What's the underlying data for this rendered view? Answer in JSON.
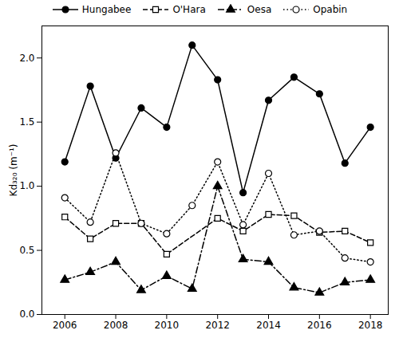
{
  "chart_data": {
    "type": "line",
    "x": [
      2006,
      2007,
      2008,
      2009,
      2010,
      2011,
      2012,
      2013,
      2014,
      2015,
      2016,
      2017,
      2018
    ],
    "xlim": [
      2005.1,
      2018.7
    ],
    "xticks": [
      2006,
      2008,
      2010,
      2012,
      2014,
      2016,
      2018
    ],
    "ylim": [
      0,
      2.25
    ],
    "yticks": [
      0,
      0.5,
      1,
      1.5,
      2
    ],
    "y_label": "Kd₃₂₀ (m⁻¹)",
    "legend": "top",
    "series": [
      {
        "name": "Hungabee",
        "color": "#000000",
        "marker": "filled_circle",
        "line_style": "solid",
        "values": [
          1.19,
          1.78,
          1.22,
          1.61,
          1.46,
          2.1,
          1.83,
          0.95,
          1.67,
          1.85,
          1.72,
          1.18,
          1.46
        ]
      },
      {
        "name": "O'Hara",
        "color": "#000000",
        "marker": "open_square",
        "line_style": "dashed",
        "values": [
          0.76,
          0.59,
          0.71,
          0.71,
          0.47,
          null,
          0.75,
          0.65,
          0.78,
          0.77,
          0.64,
          0.65,
          0.56
        ]
      },
      {
        "name": "Oesa",
        "color": "#000000",
        "marker": "filled_triangle",
        "line_style": "dashdot",
        "values": [
          0.27,
          0.33,
          0.41,
          0.19,
          0.3,
          0.2,
          1.0,
          0.43,
          0.41,
          0.21,
          0.17,
          0.25,
          0.27
        ]
      },
      {
        "name": "Opabin",
        "color": "#000000",
        "marker": "open_circle",
        "line_style": "dotted",
        "values": [
          0.91,
          0.72,
          1.26,
          0.71,
          0.63,
          0.85,
          1.19,
          0.7,
          1.1,
          0.62,
          0.65,
          0.44,
          0.41
        ]
      }
    ]
  }
}
